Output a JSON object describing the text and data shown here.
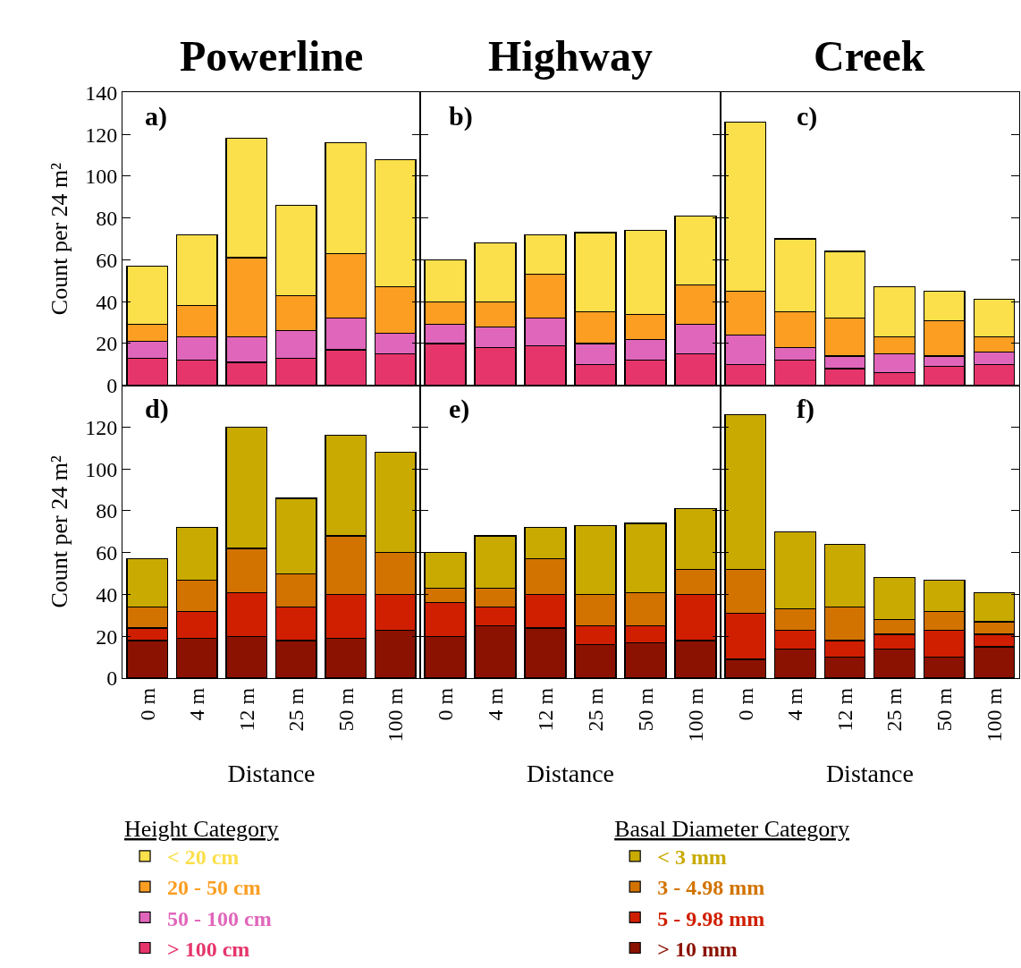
{
  "chart_data": [
    {
      "type": "bar",
      "stacked": true,
      "title": "Powerline",
      "ylabel": "Count per 24 m²",
      "annotations": [
        "a)"
      ],
      "categories": [
        "0 m",
        "4 m",
        "12 m",
        "25 m",
        "50 m",
        "100 m"
      ],
      "ylim": [
        0,
        140
      ],
      "yticks": [
        0,
        20,
        40,
        60,
        80,
        100,
        120,
        140
      ],
      "tick_labels": "y",
      "legend": "bottom left",
      "legend_title": "Height Category",
      "series": [
        {
          "name": "> 100 cm",
          "color": "#e6356b",
          "values": [
            13,
            12,
            11,
            13,
            17,
            15
          ]
        },
        {
          "name": "50 - 100 cm",
          "color": "#e066bb",
          "values": [
            8,
            11,
            12,
            13,
            15,
            10
          ]
        },
        {
          "name": "20 - 50 cm",
          "color": "#fb9e22",
          "values": [
            8,
            15,
            38,
            17,
            31,
            22
          ]
        },
        {
          "name": "< 20 cm",
          "color": "#fbdf4b",
          "values": [
            28,
            34,
            57,
            43,
            53,
            61
          ]
        }
      ]
    },
    {
      "type": "bar",
      "stacked": true,
      "title": "Highway",
      "annotations": [
        "b)"
      ],
      "categories": [
        "0 m",
        "4 m",
        "12 m",
        "25 m",
        "50 m",
        "100 m"
      ],
      "ylim": [
        0,
        140
      ],
      "yticks": [
        0,
        20,
        40,
        60,
        80,
        100,
        120,
        140
      ],
      "tick_labels": false,
      "series": [
        {
          "color": "#e6356b",
          "values": [
            20,
            18,
            19,
            10,
            12,
            15
          ]
        },
        {
          "color": "#e066bb",
          "values": [
            9,
            10,
            13,
            10,
            10,
            14
          ]
        },
        {
          "color": "#fb9e22",
          "values": [
            11,
            12,
            21,
            15,
            12,
            19
          ]
        },
        {
          "color": "#fbdf4b",
          "values": [
            20,
            28,
            19,
            38,
            40,
            33
          ]
        }
      ]
    },
    {
      "type": "bar",
      "stacked": true,
      "title": "Creek",
      "annotations": [
        "c)"
      ],
      "categories": [
        "0 m",
        "4 m",
        "12 m",
        "25 m",
        "50 m",
        "100 m"
      ],
      "ylim": [
        0,
        140
      ],
      "yticks": [
        0,
        20,
        40,
        60,
        80,
        100,
        120,
        140
      ],
      "tick_labels": false,
      "series": [
        {
          "color": "#e6356b",
          "values": [
            10,
            12,
            8,
            6,
            9,
            10
          ]
        },
        {
          "color": "#e066bb",
          "values": [
            14,
            6,
            6,
            9,
            5,
            6
          ]
        },
        {
          "color": "#fb9e22",
          "values": [
            21,
            17,
            18,
            8,
            17,
            7
          ]
        },
        {
          "color": "#fbdf4b",
          "values": [
            81,
            35,
            32,
            24,
            14,
            18
          ]
        }
      ]
    },
    {
      "type": "bar",
      "stacked": true,
      "xlabel": "Distance",
      "ylabel": "Count per 24 m²",
      "annotations": [
        "d)"
      ],
      "categories": [
        "0 m",
        "4 m",
        "12 m",
        "25 m",
        "50 m",
        "100 m"
      ],
      "ylim": [
        0,
        140
      ],
      "yticks": [
        0,
        20,
        40,
        60,
        80,
        100,
        120
      ],
      "legend": "bottom right",
      "legend_title": "Basal Diameter Category",
      "series": [
        {
          "name": "> 10 mm",
          "color": "#8b1200",
          "values": [
            18,
            19,
            20,
            18,
            19,
            23
          ]
        },
        {
          "name": "5 - 9.98 mm",
          "color": "#d01f00",
          "values": [
            6,
            13,
            21,
            16,
            21,
            17
          ]
        },
        {
          "name": "3 - 4.98 mm",
          "color": "#d27300",
          "values": [
            10,
            15,
            21,
            16,
            28,
            20
          ]
        },
        {
          "name": "< 3 mm",
          "color": "#c9aa00",
          "values": [
            23,
            25,
            58,
            36,
            48,
            48
          ]
        }
      ]
    },
    {
      "type": "bar",
      "stacked": true,
      "xlabel": "Distance",
      "annotations": [
        "e)"
      ],
      "categories": [
        "0 m",
        "4 m",
        "12 m",
        "25 m",
        "50 m",
        "100 m"
      ],
      "ylim": [
        0,
        140
      ],
      "yticks": [
        0,
        20,
        40,
        60,
        80,
        100,
        120
      ],
      "tick_labels": "x",
      "series": [
        {
          "color": "#8b1200",
          "values": [
            20,
            25,
            24,
            16,
            17,
            18
          ]
        },
        {
          "color": "#d01f00",
          "values": [
            16,
            9,
            16,
            9,
            8,
            22
          ]
        },
        {
          "color": "#d27300",
          "values": [
            7,
            9,
            17,
            15,
            16,
            12
          ]
        },
        {
          "color": "#c9aa00",
          "values": [
            17,
            25,
            15,
            33,
            33,
            29
          ]
        }
      ]
    },
    {
      "type": "bar",
      "stacked": true,
      "xlabel": "Distance",
      "annotations": [
        "f)"
      ],
      "categories": [
        "0 m",
        "4 m",
        "12 m",
        "25 m",
        "50 m",
        "100 m"
      ],
      "ylim": [
        0,
        140
      ],
      "yticks": [
        0,
        20,
        40,
        60,
        80,
        100,
        120
      ],
      "tick_labels": "x",
      "series": [
        {
          "color": "#8b1200",
          "values": [
            9,
            14,
            10,
            14,
            10,
            15
          ]
        },
        {
          "color": "#d01f00",
          "values": [
            22,
            9,
            8,
            7,
            13,
            6
          ]
        },
        {
          "color": "#d27300",
          "values": [
            21,
            10,
            16,
            7,
            9,
            6
          ]
        },
        {
          "color": "#c9aa00",
          "values": [
            74,
            37,
            30,
            20,
            15,
            14
          ]
        }
      ]
    }
  ]
}
